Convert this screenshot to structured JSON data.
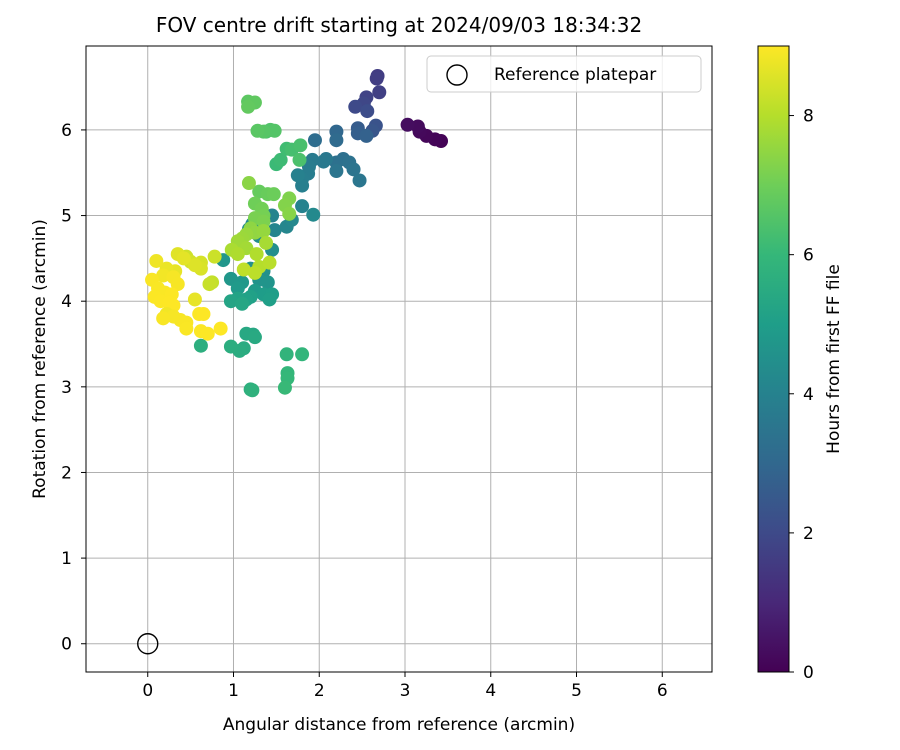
{
  "chart_data": {
    "type": "scatter",
    "title": "FOV centre drift starting at 2024/09/03 18:34:32",
    "xlabel": "Angular distance from reference (arcmin)",
    "ylabel": "Rotation from reference (arcmin)",
    "xlim": [
      -0.72,
      6.58
    ],
    "ylim": [
      -0.33,
      6.98
    ],
    "xticks": [
      "0",
      "1",
      "2",
      "3",
      "4",
      "5",
      "6"
    ],
    "yticks": [
      "0",
      "1",
      "2",
      "3",
      "4",
      "5",
      "6"
    ],
    "grid": true,
    "legend": {
      "placement": "top-right",
      "entries": [
        "Reference platepar"
      ]
    },
    "reference_point": {
      "x": 0,
      "y": 0
    },
    "colorbar": {
      "label": "Hours from first FF file",
      "range": [
        0,
        9
      ],
      "ticks": [
        "0",
        "2",
        "4",
        "6",
        "8"
      ],
      "colormap": [
        "#440154",
        "#482878",
        "#3e4a89",
        "#31688e",
        "#26828e",
        "#1f9e89",
        "#35b779",
        "#6ece58",
        "#b5de2b",
        "#fde725"
      ]
    },
    "series": [
      {
        "points": [
          {
            "x": 3.42,
            "y": 5.87,
            "h": 0.05
          },
          {
            "x": 3.35,
            "y": 5.89,
            "h": 0.1
          },
          {
            "x": 3.25,
            "y": 5.93,
            "h": 0.15
          },
          {
            "x": 3.17,
            "y": 5.98,
            "h": 0.2
          },
          {
            "x": 3.15,
            "y": 6.04,
            "h": 0.25
          },
          {
            "x": 3.03,
            "y": 6.06,
            "h": 0.3
          },
          {
            "x": 2.68,
            "y": 6.63,
            "h": 1.6
          },
          {
            "x": 2.67,
            "y": 6.6,
            "h": 1.65
          },
          {
            "x": 2.7,
            "y": 6.44,
            "h": 1.7
          },
          {
            "x": 2.55,
            "y": 6.38,
            "h": 1.8
          },
          {
            "x": 2.52,
            "y": 6.31,
            "h": 1.9
          },
          {
            "x": 2.42,
            "y": 6.27,
            "h": 2.0
          },
          {
            "x": 2.56,
            "y": 6.22,
            "h": 2.1
          },
          {
            "x": 2.66,
            "y": 6.05,
            "h": 2.3
          },
          {
            "x": 2.62,
            "y": 5.99,
            "h": 2.4
          },
          {
            "x": 2.45,
            "y": 6.02,
            "h": 2.6
          },
          {
            "x": 2.45,
            "y": 5.96,
            "h": 2.7
          },
          {
            "x": 2.55,
            "y": 5.93,
            "h": 2.8
          },
          {
            "x": 2.2,
            "y": 5.98,
            "h": 3.0
          },
          {
            "x": 2.2,
            "y": 5.88,
            "h": 3.1
          },
          {
            "x": 1.95,
            "y": 5.88,
            "h": 3.2
          },
          {
            "x": 2.28,
            "y": 5.66,
            "h": 3.3
          },
          {
            "x": 2.2,
            "y": 5.62,
            "h": 3.35
          },
          {
            "x": 2.35,
            "y": 5.62,
            "h": 3.4
          },
          {
            "x": 2.4,
            "y": 5.54,
            "h": 3.45
          },
          {
            "x": 2.2,
            "y": 5.52,
            "h": 3.5
          },
          {
            "x": 2.47,
            "y": 5.41,
            "h": 3.55
          },
          {
            "x": 2.08,
            "y": 5.66,
            "h": 3.6
          },
          {
            "x": 2.05,
            "y": 5.63,
            "h": 3.65
          },
          {
            "x": 1.92,
            "y": 5.65,
            "h": 3.7
          },
          {
            "x": 1.88,
            "y": 5.57,
            "h": 3.75
          },
          {
            "x": 1.87,
            "y": 5.49,
            "h": 3.8
          },
          {
            "x": 1.8,
            "y": 5.43,
            "h": 3.85
          },
          {
            "x": 1.8,
            "y": 5.35,
            "h": 3.9
          },
          {
            "x": 1.75,
            "y": 5.47,
            "h": 3.95
          },
          {
            "x": 1.8,
            "y": 5.11,
            "h": 4.0
          },
          {
            "x": 1.45,
            "y": 5.0,
            "h": 4.05
          },
          {
            "x": 1.48,
            "y": 4.83,
            "h": 4.1
          },
          {
            "x": 1.62,
            "y": 4.87,
            "h": 4.15
          },
          {
            "x": 1.68,
            "y": 4.95,
            "h": 4.2
          },
          {
            "x": 1.93,
            "y": 5.01,
            "h": 4.25
          },
          {
            "x": 1.22,
            "y": 4.9,
            "h": 4.3
          },
          {
            "x": 1.18,
            "y": 4.84,
            "h": 4.35
          },
          {
            "x": 1.3,
            "y": 4.76,
            "h": 4.4
          },
          {
            "x": 1.45,
            "y": 4.6,
            "h": 4.45
          },
          {
            "x": 1.2,
            "y": 4.38,
            "h": 4.5
          },
          {
            "x": 1.35,
            "y": 4.35,
            "h": 4.55
          },
          {
            "x": 1.3,
            "y": 4.25,
            "h": 4.6
          },
          {
            "x": 1.4,
            "y": 4.22,
            "h": 4.65
          },
          {
            "x": 0.88,
            "y": 4.48,
            "h": 4.7
          },
          {
            "x": 0.97,
            "y": 4.26,
            "h": 4.75
          },
          {
            "x": 1.1,
            "y": 4.22,
            "h": 4.8
          },
          {
            "x": 1.05,
            "y": 4.15,
            "h": 4.85
          },
          {
            "x": 1.25,
            "y": 4.12,
            "h": 4.9
          },
          {
            "x": 1.35,
            "y": 4.08,
            "h": 4.95
          },
          {
            "x": 1.45,
            "y": 4.08,
            "h": 5.0
          },
          {
            "x": 1.42,
            "y": 4.02,
            "h": 5.05
          },
          {
            "x": 1.2,
            "y": 4.05,
            "h": 5.1
          },
          {
            "x": 1.15,
            "y": 4.02,
            "h": 5.15
          },
          {
            "x": 1.05,
            "y": 4.03,
            "h": 5.2
          },
          {
            "x": 0.97,
            "y": 4.0,
            "h": 5.25
          },
          {
            "x": 1.1,
            "y": 3.97,
            "h": 5.3
          },
          {
            "x": 1.23,
            "y": 3.61,
            "h": 5.35
          },
          {
            "x": 1.15,
            "y": 3.62,
            "h": 5.4
          },
          {
            "x": 1.25,
            "y": 3.58,
            "h": 5.45
          },
          {
            "x": 1.12,
            "y": 3.45,
            "h": 5.5
          },
          {
            "x": 1.07,
            "y": 3.42,
            "h": 5.55
          },
          {
            "x": 0.97,
            "y": 3.47,
            "h": 5.6
          },
          {
            "x": 0.62,
            "y": 3.48,
            "h": 5.65
          },
          {
            "x": 1.2,
            "y": 2.97,
            "h": 5.7
          },
          {
            "x": 1.22,
            "y": 2.96,
            "h": 5.75
          },
          {
            "x": 1.62,
            "y": 3.38,
            "h": 5.85
          },
          {
            "x": 1.8,
            "y": 3.38,
            "h": 5.9
          },
          {
            "x": 1.63,
            "y": 3.16,
            "h": 5.95
          },
          {
            "x": 1.63,
            "y": 3.1,
            "h": 6.0
          },
          {
            "x": 1.6,
            "y": 2.99,
            "h": 6.05
          },
          {
            "x": 1.5,
            "y": 5.6,
            "h": 6.1
          },
          {
            "x": 1.55,
            "y": 5.65,
            "h": 6.15
          },
          {
            "x": 1.62,
            "y": 5.78,
            "h": 6.2
          },
          {
            "x": 1.68,
            "y": 5.77,
            "h": 6.3
          },
          {
            "x": 1.78,
            "y": 5.82,
            "h": 6.35
          },
          {
            "x": 1.77,
            "y": 5.65,
            "h": 6.4
          },
          {
            "x": 1.38,
            "y": 5.98,
            "h": 6.45
          },
          {
            "x": 1.43,
            "y": 6.0,
            "h": 6.5
          },
          {
            "x": 1.48,
            "y": 5.99,
            "h": 6.55
          },
          {
            "x": 1.35,
            "y": 5.98,
            "h": 6.6
          },
          {
            "x": 1.28,
            "y": 5.99,
            "h": 6.65
          },
          {
            "x": 1.17,
            "y": 6.33,
            "h": 6.7
          },
          {
            "x": 1.25,
            "y": 6.32,
            "h": 6.75
          },
          {
            "x": 1.17,
            "y": 6.27,
            "h": 6.8
          },
          {
            "x": 1.3,
            "y": 5.28,
            "h": 6.85
          },
          {
            "x": 1.4,
            "y": 5.25,
            "h": 6.9
          },
          {
            "x": 1.47,
            "y": 5.25,
            "h": 6.95
          },
          {
            "x": 1.25,
            "y": 5.14,
            "h": 7.0
          },
          {
            "x": 1.33,
            "y": 5.08,
            "h": 7.05
          },
          {
            "x": 1.35,
            "y": 5.0,
            "h": 7.1
          },
          {
            "x": 1.25,
            "y": 4.97,
            "h": 7.15
          },
          {
            "x": 1.35,
            "y": 4.93,
            "h": 7.2
          },
          {
            "x": 1.65,
            "y": 5.2,
            "h": 7.25
          },
          {
            "x": 1.6,
            "y": 5.12,
            "h": 7.3
          },
          {
            "x": 1.65,
            "y": 5.02,
            "h": 7.35
          },
          {
            "x": 1.18,
            "y": 5.38,
            "h": 7.4
          },
          {
            "x": 1.2,
            "y": 4.85,
            "h": 7.45
          },
          {
            "x": 1.25,
            "y": 4.8,
            "h": 7.5
          },
          {
            "x": 1.35,
            "y": 4.82,
            "h": 7.55
          },
          {
            "x": 1.15,
            "y": 4.78,
            "h": 7.6
          },
          {
            "x": 1.1,
            "y": 4.73,
            "h": 7.65
          },
          {
            "x": 1.05,
            "y": 4.7,
            "h": 7.7
          },
          {
            "x": 1.15,
            "y": 4.62,
            "h": 7.75
          },
          {
            "x": 1.38,
            "y": 4.68,
            "h": 7.8
          },
          {
            "x": 0.98,
            "y": 4.6,
            "h": 7.85
          },
          {
            "x": 1.05,
            "y": 4.55,
            "h": 7.9
          },
          {
            "x": 1.27,
            "y": 4.55,
            "h": 7.95
          },
          {
            "x": 1.3,
            "y": 4.4,
            "h": 8.0
          },
          {
            "x": 1.42,
            "y": 4.45,
            "h": 8.05
          },
          {
            "x": 1.25,
            "y": 4.33,
            "h": 8.1
          },
          {
            "x": 1.12,
            "y": 4.37,
            "h": 8.15
          },
          {
            "x": 0.75,
            "y": 4.22,
            "h": 8.2
          },
          {
            "x": 0.72,
            "y": 4.2,
            "h": 8.25
          },
          {
            "x": 0.78,
            "y": 4.52,
            "h": 8.3
          },
          {
            "x": 0.45,
            "y": 4.52,
            "h": 8.35
          },
          {
            "x": 0.5,
            "y": 4.46,
            "h": 8.4
          },
          {
            "x": 0.62,
            "y": 4.45,
            "h": 8.45
          },
          {
            "x": 0.62,
            "y": 4.38,
            "h": 8.5
          },
          {
            "x": 0.55,
            "y": 4.42,
            "h": 8.55
          },
          {
            "x": 0.35,
            "y": 4.55,
            "h": 8.6
          },
          {
            "x": 0.42,
            "y": 4.5,
            "h": 8.65
          },
          {
            "x": 0.32,
            "y": 4.35,
            "h": 8.7
          },
          {
            "x": 0.22,
            "y": 4.38,
            "h": 8.75
          },
          {
            "x": 0.1,
            "y": 4.47,
            "h": 8.8
          },
          {
            "x": 0.18,
            "y": 4.3,
            "h": 8.85
          },
          {
            "x": 0.3,
            "y": 4.28,
            "h": 8.9
          },
          {
            "x": 0.35,
            "y": 4.2,
            "h": 8.92
          },
          {
            "x": 0.05,
            "y": 4.25,
            "h": 8.94
          },
          {
            "x": 0.12,
            "y": 4.15,
            "h": 8.95
          },
          {
            "x": 0.2,
            "y": 4.1,
            "h": 8.96
          },
          {
            "x": 0.08,
            "y": 4.05,
            "h": 8.97
          },
          {
            "x": 0.28,
            "y": 4.08,
            "h": 8.98
          },
          {
            "x": 0.15,
            "y": 4.0,
            "h": 8.99
          },
          {
            "x": 0.25,
            "y": 3.98,
            "h": 9.0
          },
          {
            "x": 0.3,
            "y": 3.95,
            "h": 9.0
          },
          {
            "x": 0.55,
            "y": 4.02,
            "h": 8.7
          },
          {
            "x": 0.22,
            "y": 3.85,
            "h": 8.85
          },
          {
            "x": 0.3,
            "y": 3.82,
            "h": 8.9
          },
          {
            "x": 0.38,
            "y": 3.78,
            "h": 8.92
          },
          {
            "x": 0.45,
            "y": 3.75,
            "h": 8.94
          },
          {
            "x": 0.45,
            "y": 3.68,
            "h": 8.96
          },
          {
            "x": 0.6,
            "y": 3.85,
            "h": 8.98
          },
          {
            "x": 0.65,
            "y": 3.85,
            "h": 9.0
          },
          {
            "x": 0.62,
            "y": 3.65,
            "h": 8.97
          },
          {
            "x": 0.7,
            "y": 3.62,
            "h": 8.99
          },
          {
            "x": 0.85,
            "y": 3.68,
            "h": 9.0
          },
          {
            "x": 0.18,
            "y": 3.8,
            "h": 8.93
          }
        ]
      }
    ]
  }
}
